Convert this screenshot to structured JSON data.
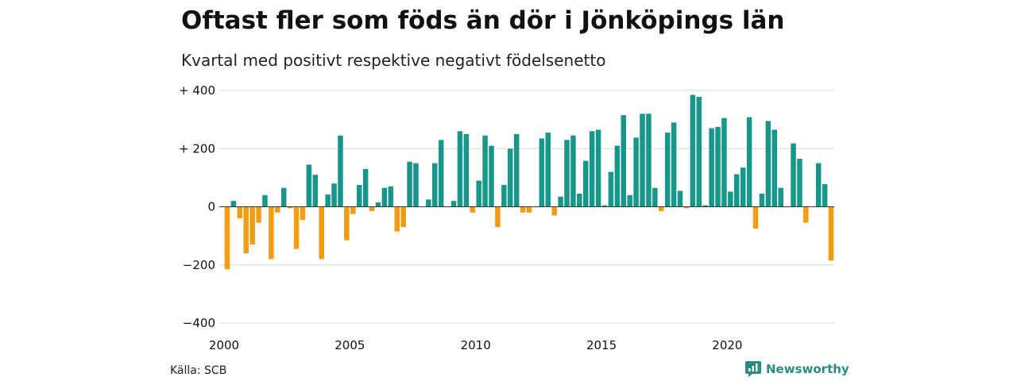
{
  "title": "Oftast fler som föds än dör i Jönköpings län",
  "subtitle": "Kvartal med positivt respektive negativt födelsenetto",
  "source": "Källa: SCB",
  "brand": "Newsworthy",
  "colors": {
    "positive": "#17968a",
    "negative": "#f39c12",
    "grid": "#d9d9d9",
    "brand": "#2a8c80"
  },
  "chart_data": {
    "type": "bar",
    "x_start": "2000 Q1",
    "x_ticks": [
      "2000",
      "2005",
      "2010",
      "2015",
      "2020"
    ],
    "y_ticks": [
      "+ 400",
      "+ 200",
      "0",
      "−200",
      "−400"
    ],
    "y_tick_values": [
      400,
      200,
      0,
      -200,
      -400
    ],
    "ylim": [
      -400,
      400
    ],
    "grid": true,
    "values": [
      -215,
      20,
      -40,
      -160,
      -130,
      -55,
      40,
      -180,
      -20,
      65,
      -5,
      -145,
      -45,
      145,
      110,
      -180,
      42,
      80,
      245,
      -115,
      -25,
      75,
      130,
      -15,
      15,
      65,
      70,
      -85,
      -70,
      155,
      150,
      0,
      25,
      150,
      230,
      0,
      20,
      260,
      250,
      -20,
      90,
      245,
      210,
      -70,
      75,
      200,
      250,
      -20,
      -20,
      0,
      235,
      255,
      -30,
      35,
      230,
      245,
      45,
      158,
      260,
      265,
      5,
      120,
      210,
      315,
      40,
      238,
      320,
      320,
      65,
      -15,
      255,
      290,
      55,
      -5,
      385,
      378,
      5,
      270,
      275,
      305,
      52,
      112,
      135,
      308,
      -75,
      45,
      295,
      265,
      65,
      0,
      218,
      165,
      -55,
      0,
      150,
      78,
      -185
    ]
  }
}
